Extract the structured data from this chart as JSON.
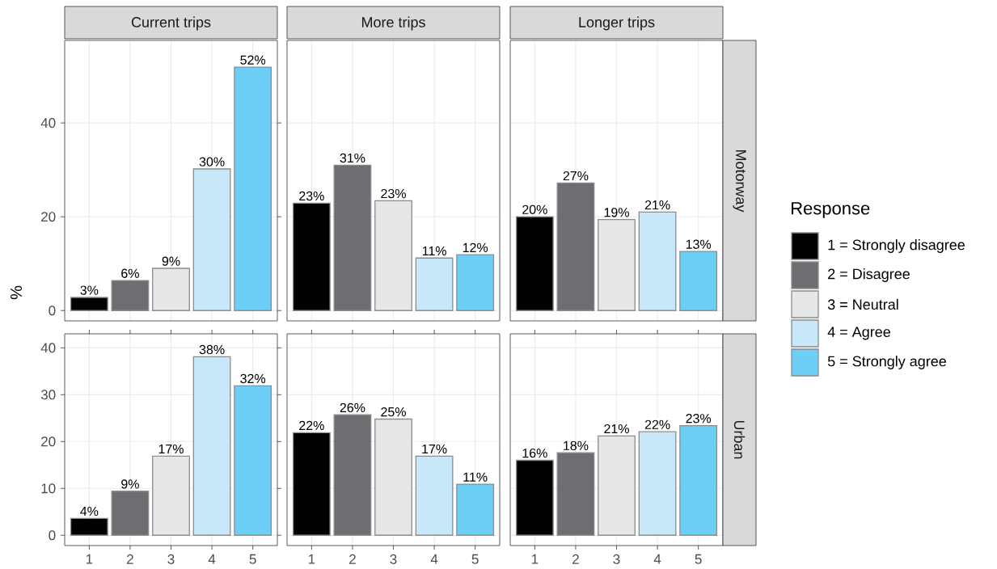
{
  "chart_data": [
    {
      "type": "bar",
      "title": "Current trips",
      "ylabel": "%",
      "categories": [
        "1",
        "2",
        "3",
        "4",
        "5"
      ],
      "ylim": [
        -2.2,
        57.6
      ],
      "yticks": [
        0,
        20,
        40
      ],
      "grid": true,
      "tick_labels": "y",
      "series": [
        {
          "color": "#000000",
          "values": [
            2.8,
            null,
            null,
            null,
            null
          ],
          "value_labels": [
            "3%",
            null,
            null,
            null,
            null
          ]
        },
        {
          "color": "#6d6e71",
          "values": [
            null,
            6.4,
            null,
            null,
            null
          ],
          "value_labels": [
            null,
            "6%",
            null,
            null,
            null
          ]
        },
        {
          "color": "#e6e7e8",
          "values": [
            null,
            null,
            9.0,
            null,
            null
          ],
          "value_labels": [
            null,
            null,
            "9%",
            null,
            null
          ]
        },
        {
          "color": "#c6e8f8",
          "values": [
            null,
            null,
            null,
            30.2,
            null
          ],
          "value_labels": [
            null,
            null,
            null,
            "30%",
            null
          ]
        },
        {
          "color": "#6dcff6",
          "values": [
            null,
            null,
            null,
            null,
            51.9
          ],
          "value_labels": [
            null,
            null,
            null,
            null,
            "52%"
          ]
        }
      ]
    },
    {
      "type": "bar",
      "title": "More trips",
      "categories": [
        "1",
        "2",
        "3",
        "4",
        "5"
      ],
      "ylim": [
        -2.2,
        57.6
      ],
      "yticks": [
        0,
        20,
        40
      ],
      "grid": true,
      "tick_labels": false,
      "series": [
        {
          "color": "#000000",
          "values": [
            22.9,
            null,
            null,
            null,
            null
          ],
          "value_labels": [
            "23%",
            null,
            null,
            null,
            null
          ]
        },
        {
          "color": "#6d6e71",
          "values": [
            null,
            31.0,
            null,
            null,
            null
          ],
          "value_labels": [
            null,
            "31%",
            null,
            null,
            null
          ]
        },
        {
          "color": "#e6e7e8",
          "values": [
            null,
            null,
            23.4,
            null,
            null
          ],
          "value_labels": [
            null,
            null,
            "23%",
            null,
            null
          ]
        },
        {
          "color": "#c6e8f8",
          "values": [
            null,
            null,
            null,
            11.2,
            null
          ],
          "value_labels": [
            null,
            null,
            null,
            "11%",
            null
          ]
        },
        {
          "color": "#6dcff6",
          "values": [
            null,
            null,
            null,
            null,
            11.9
          ],
          "value_labels": [
            null,
            null,
            null,
            null,
            "12%"
          ]
        }
      ]
    },
    {
      "type": "bar",
      "title": "Longer trips",
      "y2label": "Motorway",
      "legend_title": "Response",
      "legend": "right",
      "categories": [
        "1",
        "2",
        "3",
        "4",
        "5"
      ],
      "ylim": [
        -2.2,
        57.6
      ],
      "yticks": [
        0,
        20,
        40
      ],
      "grid": true,
      "tick_labels": false,
      "series": [
        {
          "name": "1 = Strongly disagree",
          "color": "#000000",
          "values": [
            20.0,
            null,
            null,
            null,
            null
          ],
          "value_labels": [
            "20%",
            null,
            null,
            null,
            null
          ]
        },
        {
          "name": "2 = Disagree",
          "color": "#6d6e71",
          "values": [
            null,
            27.2,
            null,
            null,
            null
          ],
          "value_labels": [
            null,
            "27%",
            null,
            null,
            null
          ]
        },
        {
          "name": "3 = Neutral",
          "color": "#e6e7e8",
          "values": [
            null,
            null,
            19.4,
            null,
            null
          ],
          "value_labels": [
            null,
            null,
            "19%",
            null,
            null
          ]
        },
        {
          "name": "4 = Agree",
          "color": "#c6e8f8",
          "values": [
            null,
            null,
            null,
            21.0,
            null
          ],
          "value_labels": [
            null,
            null,
            null,
            "21%",
            null
          ]
        },
        {
          "name": "5 = Strongly agree",
          "color": "#6dcff6",
          "values": [
            null,
            null,
            null,
            null,
            12.6
          ],
          "value_labels": [
            null,
            null,
            null,
            null,
            "13%"
          ]
        }
      ]
    },
    {
      "type": "bar",
      "categories": [
        "1",
        "2",
        "3",
        "4",
        "5"
      ],
      "ylim": [
        -2.2,
        43.0
      ],
      "yticks": [
        0,
        10,
        20,
        30,
        40
      ],
      "grid": true,
      "series": [
        {
          "color": "#000000",
          "values": [
            3.6,
            null,
            null,
            null,
            null
          ],
          "value_labels": [
            "4%",
            null,
            null,
            null,
            null
          ]
        },
        {
          "color": "#6d6e71",
          "values": [
            null,
            9.4,
            null,
            null,
            null
          ],
          "value_labels": [
            null,
            "9%",
            null,
            null,
            null
          ]
        },
        {
          "color": "#e6e7e8",
          "values": [
            null,
            null,
            16.9,
            null,
            null
          ],
          "value_labels": [
            null,
            null,
            "17%",
            null,
            null
          ]
        },
        {
          "color": "#c6e8f8",
          "values": [
            null,
            null,
            null,
            38.1,
            null
          ],
          "value_labels": [
            null,
            null,
            null,
            "38%",
            null
          ]
        },
        {
          "color": "#6dcff6",
          "values": [
            null,
            null,
            null,
            null,
            31.9
          ],
          "value_labels": [
            null,
            null,
            null,
            null,
            "32%"
          ]
        }
      ]
    },
    {
      "type": "bar",
      "categories": [
        "1",
        "2",
        "3",
        "4",
        "5"
      ],
      "ylim": [
        -2.2,
        43.0
      ],
      "yticks": [
        0,
        10,
        20,
        30,
        40
      ],
      "grid": true,
      "tick_labels": "x",
      "series": [
        {
          "color": "#000000",
          "values": [
            21.9,
            null,
            null,
            null,
            null
          ],
          "value_labels": [
            "22%",
            null,
            null,
            null,
            null
          ]
        },
        {
          "color": "#6d6e71",
          "values": [
            null,
            25.7,
            null,
            null,
            null
          ],
          "value_labels": [
            null,
            "26%",
            null,
            null,
            null
          ]
        },
        {
          "color": "#e6e7e8",
          "values": [
            null,
            null,
            24.8,
            null,
            null
          ],
          "value_labels": [
            null,
            null,
            "25%",
            null,
            null
          ]
        },
        {
          "color": "#c6e8f8",
          "values": [
            null,
            null,
            null,
            16.9,
            null
          ],
          "value_labels": [
            null,
            null,
            null,
            "17%",
            null
          ]
        },
        {
          "color": "#6dcff6",
          "values": [
            null,
            null,
            null,
            null,
            10.9
          ],
          "value_labels": [
            null,
            null,
            null,
            null,
            "11%"
          ]
        }
      ]
    },
    {
      "type": "bar",
      "y2label": "Urban",
      "categories": [
        "1",
        "2",
        "3",
        "4",
        "5"
      ],
      "ylim": [
        -2.2,
        43.0
      ],
      "yticks": [
        0,
        10,
        20,
        30,
        40
      ],
      "grid": true,
      "tick_labels": "x",
      "series": [
        {
          "color": "#000000",
          "values": [
            16.0,
            null,
            null,
            null,
            null
          ],
          "value_labels": [
            "16%",
            null,
            null,
            null,
            null
          ]
        },
        {
          "color": "#6d6e71",
          "values": [
            null,
            17.6,
            null,
            null,
            null
          ],
          "value_labels": [
            null,
            "18%",
            null,
            null,
            null
          ]
        },
        {
          "color": "#e6e7e8",
          "values": [
            null,
            null,
            21.2,
            null,
            null
          ],
          "value_labels": [
            null,
            null,
            "21%",
            null,
            null
          ]
        },
        {
          "color": "#c6e8f8",
          "values": [
            null,
            null,
            null,
            22.1,
            null
          ],
          "value_labels": [
            null,
            null,
            null,
            "22%",
            null
          ]
        },
        {
          "color": "#6dcff6",
          "values": [
            null,
            null,
            null,
            null,
            23.4
          ],
          "value_labels": [
            null,
            null,
            null,
            null,
            "23%"
          ]
        }
      ]
    }
  ]
}
